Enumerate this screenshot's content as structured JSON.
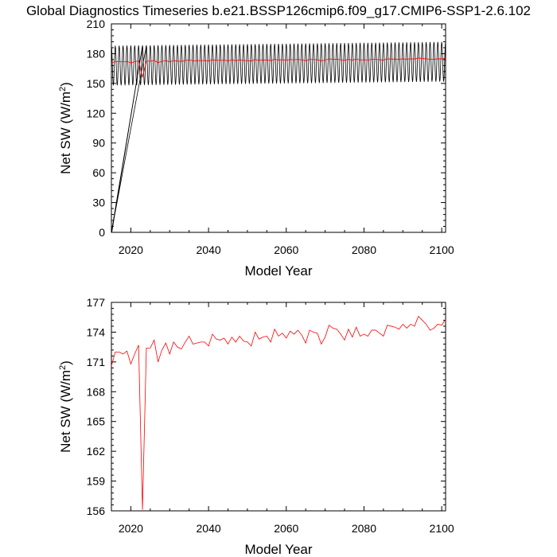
{
  "title": "Global Diagnostics Timeseries b.e21.BSSP126cmip6.f09_g17.CMIP6-SSP1-2.6.102",
  "chart_data": [
    {
      "type": "line",
      "xlabel": "Model Year",
      "ylabel_main": "Net SW (W/m",
      "ylabel_sup": "2",
      "ylabel_close": ")",
      "xlim": [
        2015,
        2101
      ],
      "ylim": [
        0,
        210
      ],
      "xticks": [
        2020,
        2040,
        2060,
        2080,
        2100
      ],
      "yticks": [
        0,
        30,
        60,
        90,
        120,
        150,
        180,
        210
      ],
      "series": [
        {
          "color": "#000000",
          "kind": "monthly",
          "start_year": 2015,
          "end_year": 2101,
          "seasonal_max": 188,
          "seasonal_min": 148,
          "spurious_points": [
            {
              "x": 2015.0,
              "y": 0
            },
            {
              "x": 2015.1,
              "y": 0
            }
          ]
        },
        {
          "color": "#ff0000",
          "kind": "annual",
          "x": [
            2015,
            2016,
            2017,
            2018,
            2019,
            2020,
            2021,
            2022,
            2023,
            2024,
            2025,
            2026,
            2027,
            2028,
            2029,
            2030,
            2031,
            2032,
            2033,
            2034,
            2035,
            2036,
            2037,
            2038,
            2039,
            2040,
            2041,
            2042,
            2043,
            2044,
            2045,
            2046,
            2047,
            2048,
            2049,
            2050,
            2051,
            2052,
            2053,
            2054,
            2055,
            2056,
            2057,
            2058,
            2059,
            2060,
            2061,
            2062,
            2063,
            2064,
            2065,
            2066,
            2067,
            2068,
            2069,
            2070,
            2071,
            2072,
            2073,
            2074,
            2075,
            2076,
            2077,
            2078,
            2079,
            2080,
            2081,
            2082,
            2083,
            2084,
            2085,
            2086,
            2087,
            2088,
            2089,
            2090,
            2091,
            2092,
            2093,
            2094,
            2095,
            2096,
            2097,
            2098,
            2099,
            2100,
            2101
          ],
          "values": [
            170.6,
            172.0,
            172.0,
            171.8,
            172.1,
            170.8,
            171.8,
            172.7,
            156.1,
            172.4,
            172.4,
            173.2,
            171.0,
            172.2,
            172.9,
            171.8,
            173.0,
            172.5,
            172.3,
            173.0,
            173.6,
            172.8,
            172.9,
            173.0,
            173.0,
            172.6,
            173.8,
            173.3,
            173.2,
            173.4,
            172.8,
            173.5,
            173.0,
            173.6,
            173.1,
            173.0,
            172.6,
            174.0,
            173.3,
            173.5,
            173.6,
            173.0,
            174.3,
            173.6,
            173.9,
            173.4,
            174.1,
            173.8,
            174.2,
            173.7,
            172.9,
            174.2,
            174.0,
            173.9,
            172.8,
            173.5,
            174.7,
            174.4,
            174.3,
            173.8,
            173.2,
            174.3,
            173.5,
            174.5,
            173.6,
            173.8,
            173.6,
            174.2,
            174.2,
            173.9,
            173.6,
            174.7,
            174.6,
            174.5,
            174.3,
            174.8,
            174.4,
            174.8,
            174.6,
            175.6,
            175.2,
            174.8,
            174.2,
            174.4,
            174.8,
            174.7,
            175.3
          ]
        }
      ]
    },
    {
      "type": "line",
      "xlabel": "Model Year",
      "ylabel_main": "Net SW (W/m",
      "ylabel_sup": "2",
      "ylabel_close": ")",
      "xlim": [
        2015,
        2101
      ],
      "ylim": [
        156,
        177
      ],
      "xticks": [
        2020,
        2040,
        2060,
        2080,
        2100
      ],
      "yticks": [
        156,
        159,
        162,
        165,
        168,
        171,
        174,
        177
      ],
      "series": [
        {
          "color": "#ff0000",
          "kind": "annual",
          "ref": 1
        }
      ]
    }
  ]
}
